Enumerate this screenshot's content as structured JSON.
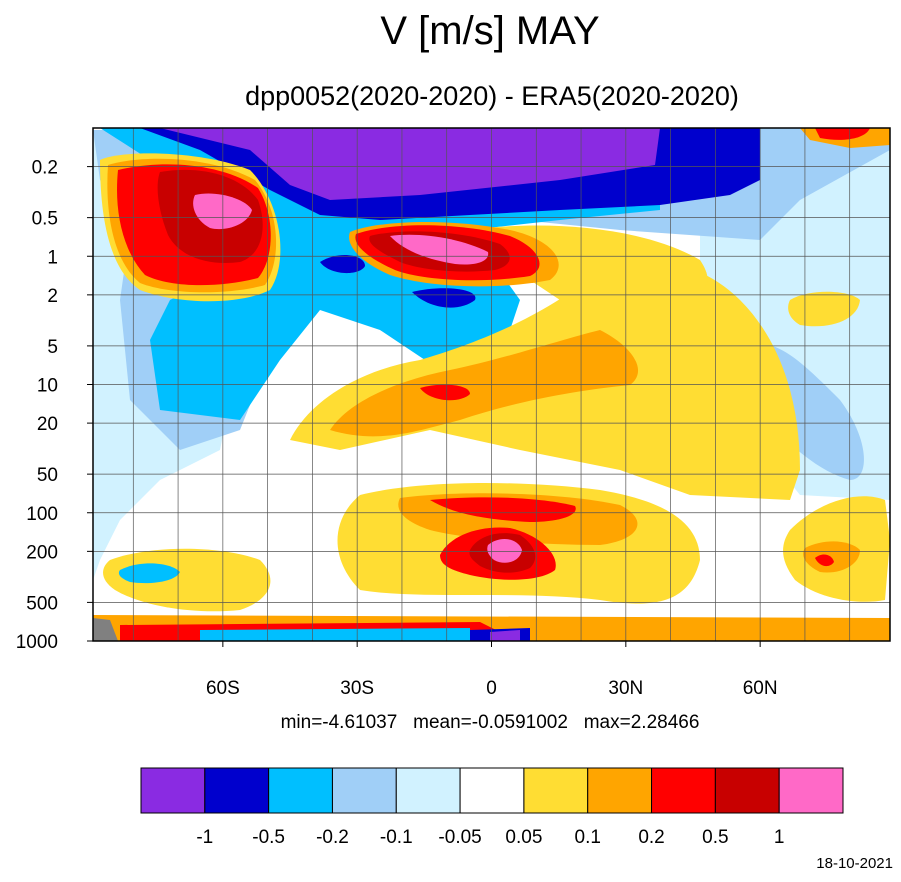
{
  "chart_data": {
    "type": "heatmap",
    "title": "V [m/s] MAY",
    "subtitle": "dpp0052(2020-2020) - ERA5(2020-2020)",
    "x_ticks": [
      "60S",
      "30S",
      "0",
      "30N",
      "60N"
    ],
    "x_tick_values": [
      -60,
      -30,
      0,
      30,
      60
    ],
    "xlim": [
      -89,
      89
    ],
    "y_ticks": [
      "0.2",
      "0.5",
      "1",
      "2",
      "5",
      "10",
      "20",
      "50",
      "100",
      "200",
      "500",
      "1000"
    ],
    "y_tick_values": [
      0.2,
      0.5,
      1,
      2,
      5,
      10,
      20,
      50,
      100,
      200,
      500,
      1000
    ],
    "ylim": [
      0.1,
      1000
    ],
    "y_scale": "log",
    "y_reversed": true,
    "stats": "min=-4.61037   mean=-0.0591002   max=2.28466",
    "colorbar": {
      "colors": [
        "#8a2be2",
        "#0000cd",
        "#00bfff",
        "#a0cff7",
        "#d1f2ff",
        "#ffffff",
        "#ffdd33",
        "#ffa500",
        "#ff0000",
        "#c80000",
        "#ff69c7"
      ],
      "labels": [
        "-1",
        "-0.5",
        "-0.2",
        "-0.1",
        "-0.05",
        "0.05",
        "0.1",
        "0.2",
        "0.5",
        "1"
      ]
    },
    "grid": true
  },
  "date": "18-10-2021"
}
